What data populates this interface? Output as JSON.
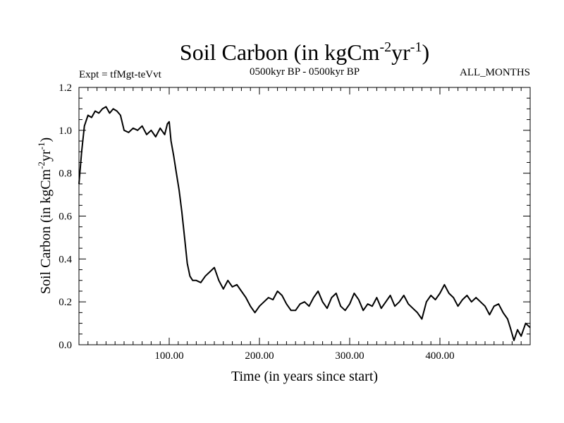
{
  "header": {
    "experiment": "Expt = tfMgt-teVvt",
    "period": "0500kyr BP - 0500kyr BP",
    "months": "ALL_MONTHS"
  },
  "chart_data": {
    "type": "line",
    "title": "Soil Carbon (in kgCm-2yr-1)",
    "title_parts": {
      "main": "Soil Carbon (in kgCm",
      "exp1": "-2",
      "mid": "yr",
      "exp2": "-1",
      "end": ")"
    },
    "xlabel": "Time (in years since start)",
    "ylabel_parts": {
      "main": "Soil Carbon (in kgCm",
      "exp1": "-2",
      "mid": "yr",
      "exp2": "-1",
      "end": ")"
    },
    "xlim": [
      0,
      500
    ],
    "ylim": [
      0.0,
      1.2
    ],
    "x_ticks": [
      100,
      200,
      300,
      400
    ],
    "x_tick_labels": [
      "100.00",
      "200.00",
      "300.00",
      "400.00"
    ],
    "y_ticks": [
      0.0,
      0.2,
      0.4,
      0.6,
      0.8,
      1.0,
      1.2
    ],
    "y_tick_labels": [
      "0.0",
      "0.2",
      "0.4",
      "0.6",
      "0.8",
      "1.0",
      "1.2"
    ],
    "grid": false,
    "line_color": "#000000",
    "series": [
      {
        "x": [
          0,
          3,
          6,
          10,
          14,
          18,
          22,
          26,
          30,
          34,
          38,
          42,
          46,
          50,
          55,
          60,
          65,
          70,
          75,
          80,
          85,
          90,
          95,
          98,
          100,
          102,
          105,
          108,
          111,
          114,
          117,
          120,
          123,
          126,
          130,
          135,
          140,
          145,
          150,
          155,
          160,
          165,
          170,
          175,
          180,
          185,
          190,
          195,
          200,
          205,
          210,
          215,
          220,
          225,
          230,
          235,
          240,
          245,
          250,
          255,
          260,
          265,
          270,
          275,
          280,
          285,
          290,
          295,
          300,
          305,
          310,
          315,
          320,
          325,
          330,
          335,
          340,
          345,
          350,
          355,
          360,
          365,
          370,
          375,
          380,
          385,
          390,
          395,
          400,
          405,
          410,
          415,
          420,
          425,
          430,
          435,
          440,
          445,
          450,
          455,
          460,
          465,
          470,
          475,
          478,
          482,
          486,
          490,
          495,
          500
        ],
        "y": [
          0.75,
          0.9,
          1.02,
          1.07,
          1.06,
          1.09,
          1.08,
          1.1,
          1.11,
          1.08,
          1.1,
          1.09,
          1.07,
          1.0,
          0.99,
          1.01,
          1.0,
          1.02,
          0.98,
          1.0,
          0.97,
          1.01,
          0.98,
          1.03,
          1.04,
          0.95,
          0.88,
          0.8,
          0.72,
          0.62,
          0.5,
          0.38,
          0.32,
          0.3,
          0.3,
          0.29,
          0.32,
          0.34,
          0.36,
          0.3,
          0.26,
          0.3,
          0.27,
          0.28,
          0.25,
          0.22,
          0.18,
          0.15,
          0.18,
          0.2,
          0.22,
          0.21,
          0.25,
          0.23,
          0.19,
          0.16,
          0.16,
          0.19,
          0.2,
          0.18,
          0.22,
          0.25,
          0.2,
          0.17,
          0.22,
          0.24,
          0.18,
          0.16,
          0.19,
          0.24,
          0.21,
          0.16,
          0.19,
          0.18,
          0.22,
          0.17,
          0.2,
          0.23,
          0.18,
          0.2,
          0.23,
          0.19,
          0.17,
          0.15,
          0.12,
          0.2,
          0.23,
          0.21,
          0.24,
          0.28,
          0.24,
          0.22,
          0.18,
          0.21,
          0.23,
          0.2,
          0.22,
          0.2,
          0.18,
          0.14,
          0.18,
          0.19,
          0.15,
          0.12,
          0.08,
          0.02,
          0.07,
          0.04,
          0.1,
          0.08
        ]
      }
    ]
  }
}
